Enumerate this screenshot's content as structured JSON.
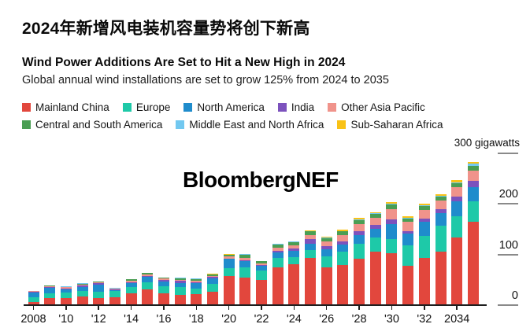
{
  "header": {
    "title_zh": "2024年新增风电装机容量势将创下新高",
    "title_en": "Wind Power Additions Are Set to Hit a New High in 2024",
    "subtitle": "Global annual wind installations are set to grow 125% from 2024 to 2035"
  },
  "watermark": "BloombergNEF",
  "chart_data": {
    "type": "bar",
    "stacked": true,
    "title": "Wind Power Additions Are Set to Hit a New High in 2024",
    "xlabel": "",
    "ylabel": "gigawatts",
    "unit_label": "300 gigawatts",
    "ylim": [
      0,
      300
    ],
    "grid": false,
    "legend_position": "top",
    "x": [
      2008,
      2009,
      2010,
      2011,
      2012,
      2013,
      2014,
      2015,
      2016,
      2017,
      2018,
      2019,
      2020,
      2021,
      2022,
      2023,
      2024,
      2025,
      2026,
      2027,
      2028,
      2029,
      2030,
      2031,
      2032,
      2033,
      2034,
      2035
    ],
    "x_tick_labels": [
      "2008",
      "'10",
      "'12",
      "'14",
      "'16",
      "'18",
      "'20",
      "'22",
      "'24",
      "'26",
      "'28",
      "'30",
      "'32",
      "2034"
    ],
    "y_axis": {
      "ticks": [
        0,
        100,
        200,
        300
      ],
      "tick_labels": [
        "0",
        "100",
        "200"
      ]
    },
    "series": [
      {
        "name": "Mainland China",
        "color": "#e2473d",
        "values": [
          6.2,
          13.5,
          14.5,
          17.6,
          14.0,
          16.1,
          23.2,
          30.8,
          23.4,
          19.7,
          21.2,
          26.2,
          57.8,
          55.0,
          49.0,
          74.5,
          80.5,
          92.5,
          74.0,
          78.5,
          91.5,
          105.0,
          103.0,
          77.0,
          92.5,
          105.0,
          133.5,
          165.0
        ]
      },
      {
        "name": "Europe",
        "color": "#1ec9a8",
        "values": [
          9.5,
          10.5,
          9.8,
          10.2,
          12.0,
          11.2,
          12.8,
          13.6,
          14.0,
          15.8,
          12.0,
          15.5,
          14.8,
          19.0,
          19.5,
          18.5,
          14.5,
          15.5,
          22.0,
          27.0,
          29.5,
          28.5,
          28.0,
          41.0,
          44.0,
          51.5,
          41.5,
          39.0
        ]
      },
      {
        "name": "North America",
        "color": "#1f8ccc",
        "values": [
          8.5,
          10.5,
          6.2,
          8.5,
          14.5,
          2.5,
          7.3,
          10.8,
          9.4,
          8.0,
          9.6,
          11.2,
          18.5,
          13.0,
          9.0,
          10.5,
          12.0,
          13.0,
          14.5,
          14.5,
          17.0,
          17.0,
          28.0,
          23.0,
          27.5,
          24.5,
          30.0,
          28.5
        ]
      },
      {
        "name": "India",
        "color": "#7c52bd",
        "values": [
          1.8,
          1.4,
          2.8,
          3.0,
          2.3,
          1.7,
          2.3,
          2.6,
          3.6,
          4.1,
          2.2,
          2.4,
          1.1,
          1.5,
          1.8,
          3.5,
          5.0,
          9.0,
          6.2,
          6.2,
          7.8,
          7.2,
          10.0,
          5.0,
          7.2,
          8.3,
          8.8,
          13.0
        ]
      },
      {
        "name": "Other Asia Pacific",
        "color": "#f0938b",
        "values": [
          1.2,
          1.5,
          1.8,
          1.6,
          1.5,
          1.0,
          2.0,
          2.0,
          1.7,
          2.0,
          2.8,
          2.6,
          3.5,
          5.0,
          3.2,
          6.5,
          6.2,
          8.8,
          8.8,
          11.9,
          14.5,
          14.5,
          21.0,
          18.0,
          17.0,
          17.6,
          19.1,
          19.5
        ]
      },
      {
        "name": "Central and South America",
        "color": "#4a9e53",
        "values": [
          0.6,
          1.5,
          1.4,
          1.6,
          1.7,
          0.8,
          3.5,
          3.8,
          2.0,
          3.2,
          3.5,
          2.8,
          3.6,
          6.0,
          4.0,
          6.5,
          6.2,
          6.7,
          6.7,
          7.2,
          7.2,
          7.8,
          9.0,
          6.7,
          6.7,
          6.7,
          7.8,
          10.0
        ]
      },
      {
        "name": "Middle East and North Africa",
        "color": "#72c8f0",
        "values": [
          0.3,
          0.5,
          0.7,
          0.5,
          0.3,
          0.2,
          0.4,
          0.5,
          0.4,
          0.8,
          0.9,
          0.5,
          0.6,
          1.0,
          0.6,
          0.5,
          0.6,
          0.8,
          1.0,
          1.2,
          1.5,
          1.5,
          1.8,
          1.5,
          1.5,
          1.5,
          2.0,
          3.5
        ]
      },
      {
        "name": "Sub-Saharan Africa",
        "color": "#f9c216",
        "values": [
          0.1,
          0.2,
          0.3,
          0.2,
          0.2,
          0.1,
          0.2,
          0.3,
          0.2,
          0.3,
          0.4,
          0.3,
          0.3,
          0.5,
          0.3,
          0.4,
          0.5,
          0.8,
          1.5,
          2.0,
          2.5,
          2.2,
          3.0,
          3.0,
          3.0,
          3.0,
          3.5,
          3.0
        ]
      }
    ],
    "legend_rows": [
      [
        0,
        1,
        2,
        3,
        4
      ],
      [
        5,
        6,
        7
      ]
    ]
  }
}
